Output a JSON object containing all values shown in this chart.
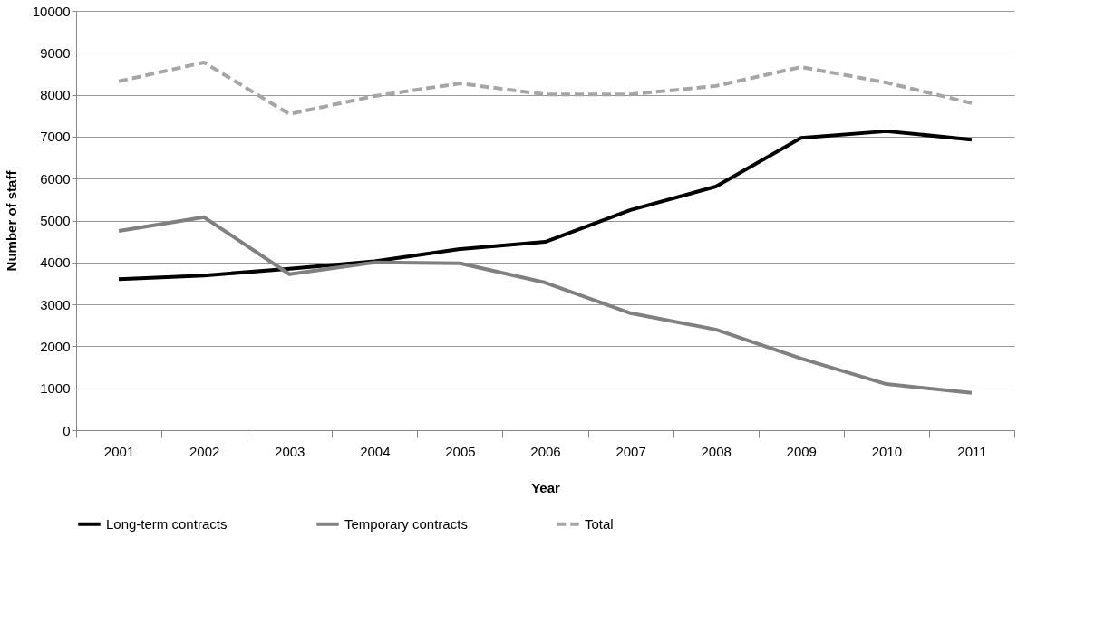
{
  "chart_data": {
    "type": "line",
    "xlabel": "Year",
    "ylabel": "Number of staff",
    "categories": [
      "2001",
      "2002",
      "2003",
      "2004",
      "2005",
      "2006",
      "2007",
      "2008",
      "2009",
      "2010",
      "2011"
    ],
    "series": [
      {
        "name": "Long-term contracts",
        "color": "#000000",
        "line_style": "solid",
        "values": [
          3600,
          3690,
          3850,
          4030,
          4320,
          4490,
          5250,
          5810,
          6970,
          7130,
          6930
        ]
      },
      {
        "name": "Temporary contracts",
        "color": "#808080",
        "line_style": "solid",
        "values": [
          4750,
          5080,
          3720,
          4000,
          3980,
          3520,
          2790,
          2400,
          1710,
          1100,
          890
        ]
      },
      {
        "name": "Total",
        "color": "#a6a6a6",
        "line_style": "dashed",
        "values": [
          8320,
          8770,
          7540,
          7970,
          8270,
          8010,
          8010,
          8210,
          8660,
          8290,
          7800
        ]
      }
    ],
    "ylim": [
      0,
      10000
    ],
    "yticks": [
      0,
      1000,
      2000,
      3000,
      4000,
      5000,
      6000,
      7000,
      8000,
      9000,
      10000
    ],
    "grid": "y",
    "legend": "bottom",
    "marker": "none"
  }
}
